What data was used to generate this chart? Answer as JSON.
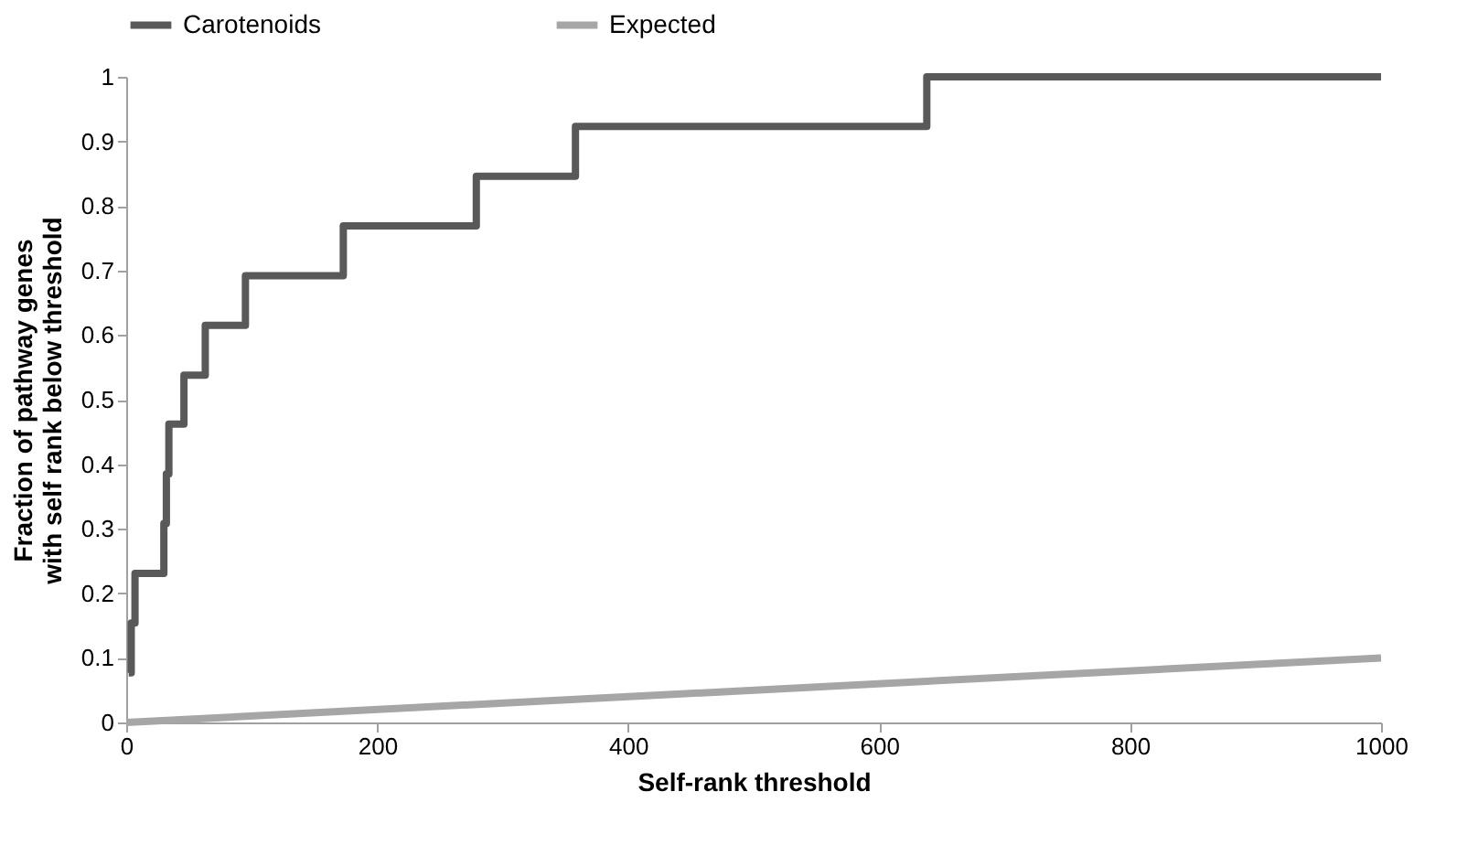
{
  "chart_data": {
    "type": "step",
    "xlabel": "Self-rank threshold",
    "ylabel": "Fraction of pathway genes with self rank below threshold",
    "xlim": [
      0,
      1000
    ],
    "xticks": [
      0,
      200,
      400,
      600,
      800,
      1000
    ],
    "ylim": [
      0,
      1
    ],
    "yticks": [
      0,
      0.1,
      0.2,
      0.3,
      0.4,
      0.5,
      0.6,
      0.7,
      0.8,
      0.9,
      1
    ],
    "grid": false,
    "legend": "top left",
    "marker": "none",
    "line_style": "solid",
    "series": [
      {
        "name": "Carotenoids",
        "color": "#595959",
        "type": "step",
        "x": [
          2,
          4,
          7,
          30,
          32,
          34,
          46,
          63,
          95,
          173,
          279,
          358,
          638,
          1000
        ],
        "values": [
          0.077,
          0.154,
          0.231,
          0.308,
          0.385,
          0.462,
          0.538,
          0.615,
          0.692,
          0.769,
          0.846,
          0.923,
          1,
          1
        ]
      },
      {
        "name": "Expected",
        "color": "#a6a6a6",
        "type": "line",
        "x": [
          0,
          1000
        ],
        "values": [
          0,
          0.1
        ]
      }
    ]
  }
}
